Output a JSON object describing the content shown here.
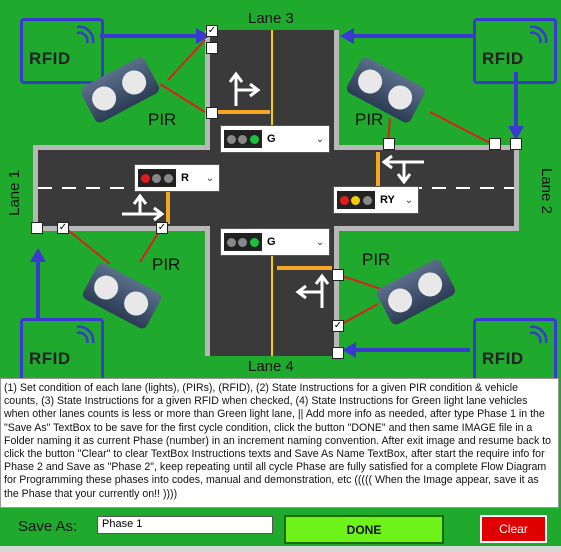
{
  "lanes": {
    "lane1": "Lane 1",
    "lane2": "Lane 2",
    "lane3": "Lane 3",
    "lane4": "Lane 4"
  },
  "rfid_label": "RFID",
  "pir_label": "PIR",
  "signals": {
    "top": {
      "state": "G",
      "lamps": [
        "#888888",
        "#888888",
        "#18c23a"
      ]
    },
    "left": {
      "state": "R",
      "lamps": [
        "#e51a1a",
        "#888888",
        "#888888"
      ]
    },
    "right": {
      "state": "RY",
      "lamps": [
        "#e51a1a",
        "#f5d000",
        "#888888"
      ]
    },
    "bottom": {
      "state": "G",
      "lamps": [
        "#888888",
        "#888888",
        "#18c23a"
      ]
    }
  },
  "checkbox_mark": "✓",
  "instructions": "(1) Set condition of each lane (lights), (PIRs), (RFID), (2) State Instructions for a given PIR condition & vehicle counts, (3) State Instructions for a given RFID when checked, (4) State Instructions for Green light lane vehicles when other lanes counts is less or more than Green light lane,  ||   Add more info as needed, after type Phase 1 in the \"Save As\" TextBox to be save for the first cycle condition, click the button \"DONE\" and then same IMAGE file in a Folder naming it as current Phase (number) in an increment naming convention. After exit image and resume back to click the button \"Clear\" to clear TextBox Instructions texts and Save As Name TextBox, after start the require info for Phase 2 and Save as \"Phase 2\", keep repeating until all cycle Phase are fully satisfied for a complete Flow Diagram for Programming these phases into codes, manual and demonstration, etc              (((((   When the Image appear, save it as the Phase that your currently on!!    ))))",
  "save_as": {
    "label": "Save As:",
    "value": "Phase 1"
  },
  "buttons": {
    "done": "DONE",
    "clear": "Clear"
  },
  "colors": {
    "background": "#1faa2e",
    "road": "#3a3a3a",
    "stop_line": "#f5a623",
    "arrow_blue": "#3a3ad0",
    "wire_red": "#d92020",
    "done_green": "#6ef31a",
    "clear_red": "#e10000"
  },
  "icons": {
    "sensor": "pir-sensor-icon",
    "rfid": "rfid-reader-icon",
    "arrow": "turn-arrow-icon"
  }
}
